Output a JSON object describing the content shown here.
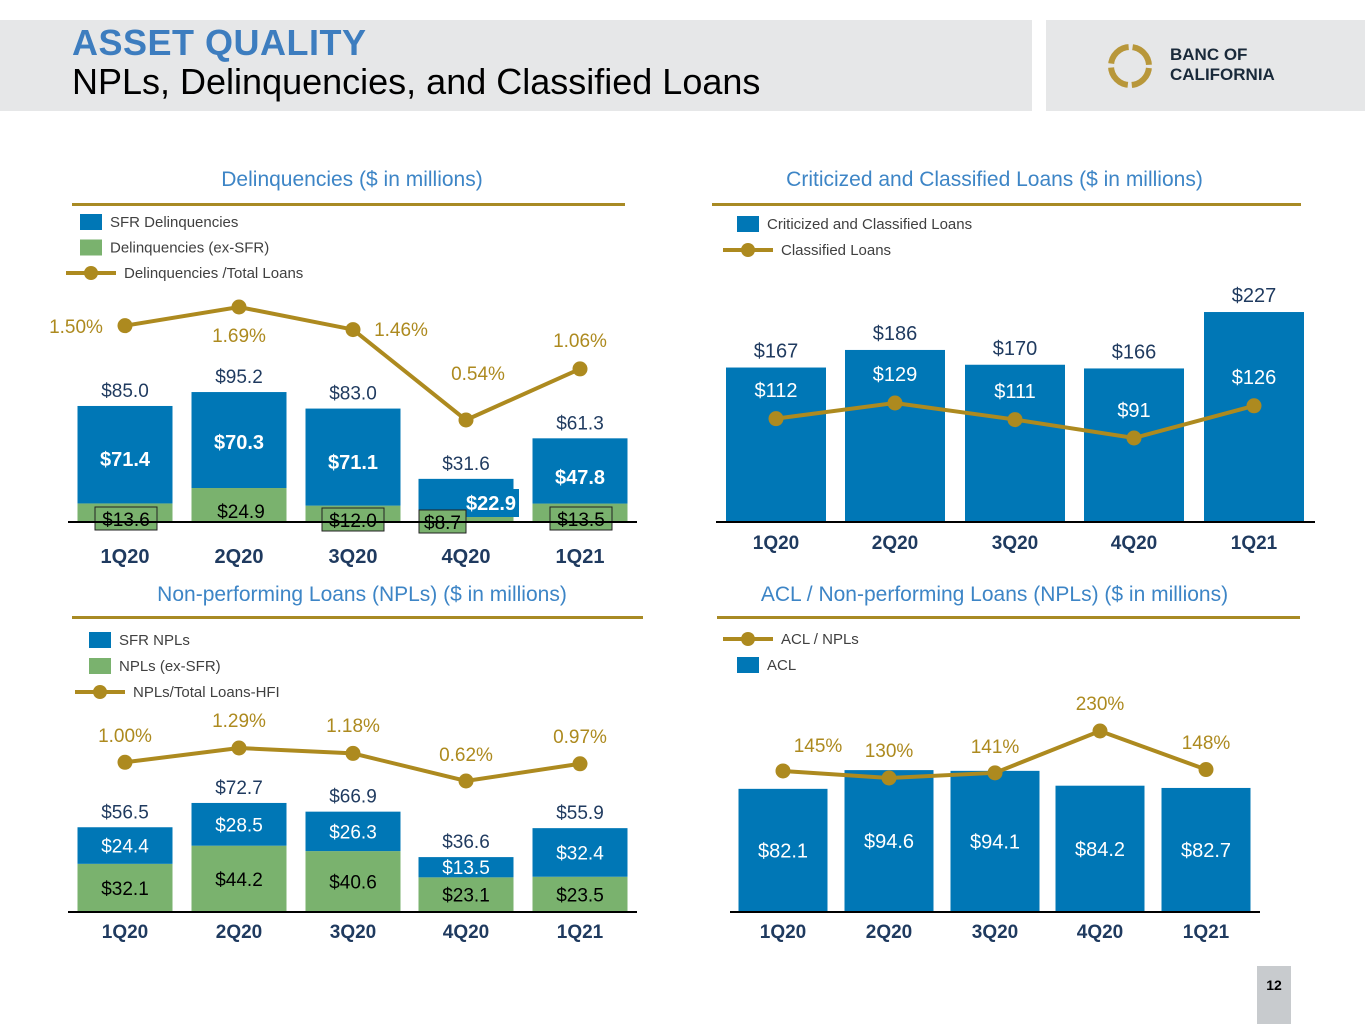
{
  "header": {
    "sup_title": "ASSET QUALITY",
    "title": "NPLs, Delinquencies, and Classified Loans",
    "logo_line1": "BANC OF",
    "logo_line2": "CALIFORNIA"
  },
  "page_number": "12",
  "colors": {
    "blue": "#0077b6",
    "green": "#7ab26e",
    "gold": "#ad8a1f",
    "title_blue": "#3d85c6",
    "header_blue": "#3d7dbf"
  },
  "chart_data": [
    {
      "id": "delinquencies",
      "type": "bar",
      "stacked": true,
      "title": "Delinquencies ($ in millions)",
      "categories": [
        "1Q20",
        "2Q20",
        "3Q20",
        "4Q20",
        "1Q21"
      ],
      "series": [
        {
          "name": "SFR Delinquencies",
          "values": [
            71.4,
            70.3,
            71.1,
            22.9,
            47.8
          ],
          "labels": [
            "$71.4",
            "$70.3",
            "$71.1",
            "$22.9",
            "$47.8"
          ]
        },
        {
          "name": "Delinquencies (ex-SFR)",
          "values": [
            13.6,
            24.9,
            12.0,
            8.7,
            13.5
          ],
          "labels": [
            "$13.6",
            "$24.9",
            "$12.0",
            "$8.7",
            "$13.5"
          ]
        }
      ],
      "totals": [
        "$85.0",
        "$95.2",
        "$83.0",
        "$31.6",
        "$61.3"
      ],
      "line": {
        "name": "Delinquencies /Total Loans",
        "values": [
          1.5,
          1.69,
          1.46,
          0.54,
          1.06
        ],
        "labels": [
          "1.50%",
          "1.69%",
          "1.46%",
          "0.54%",
          "1.06%"
        ]
      },
      "legend": [
        "SFR Delinquencies",
        "Delinquencies (ex-SFR)",
        "Delinquencies /Total Loans"
      ]
    },
    {
      "id": "criticized",
      "type": "bar",
      "title": "Criticized and Classified Loans ($ in millions)",
      "categories": [
        "1Q20",
        "2Q20",
        "3Q20",
        "4Q20",
        "1Q21"
      ],
      "series": [
        {
          "name": "Criticized and Classified Loans",
          "values": [
            167,
            186,
            170,
            166,
            227
          ],
          "labels": [
            "$167",
            "$186",
            "$170",
            "$166",
            "$227"
          ]
        }
      ],
      "line": {
        "name": "Classified Loans",
        "values": [
          112,
          129,
          111,
          91,
          126
        ],
        "labels": [
          "$112",
          "$129",
          "$111",
          "$91",
          "$126"
        ]
      },
      "legend": [
        "Criticized and Classified Loans",
        "Classified Loans"
      ]
    },
    {
      "id": "npls",
      "type": "bar",
      "stacked": true,
      "title": "Non-performing Loans (NPLs) ($ in millions)",
      "categories": [
        "1Q20",
        "2Q20",
        "3Q20",
        "4Q20",
        "1Q21"
      ],
      "series": [
        {
          "name": "NPLs (ex-SFR)",
          "values": [
            32.1,
            44.2,
            40.6,
            23.1,
            23.5
          ],
          "labels": [
            "$32.1",
            "$44.2",
            "$40.6",
            "$23.1",
            "$23.5"
          ]
        },
        {
          "name": "SFR NPLs",
          "values": [
            24.4,
            28.5,
            26.3,
            13.5,
            32.4
          ],
          "labels": [
            "$24.4",
            "$28.5",
            "$26.3",
            "$13.5",
            "$32.4"
          ]
        }
      ],
      "totals": [
        "$56.5",
        "$72.7",
        "$66.9",
        "$36.6",
        "$55.9"
      ],
      "line": {
        "name": "NPLs/Total Loans-HFI",
        "values": [
          1.0,
          1.29,
          1.18,
          0.62,
          0.97
        ],
        "labels": [
          "1.00%",
          "1.29%",
          "1.18%",
          "0.62%",
          "0.97%"
        ]
      },
      "legend": [
        "SFR NPLs",
        "NPLs (ex-SFR)",
        "NPLs/Total Loans-HFI"
      ]
    },
    {
      "id": "acl",
      "type": "bar",
      "title": "ACL / Non-performing Loans (NPLs) ($ in millions)",
      "categories": [
        "1Q20",
        "2Q20",
        "3Q20",
        "4Q20",
        "1Q21"
      ],
      "series": [
        {
          "name": "ACL",
          "values": [
            82.1,
            94.6,
            94.1,
            84.2,
            82.7
          ],
          "labels": [
            "$82.1",
            "$94.6",
            "$94.1",
            "$84.2",
            "$82.7"
          ]
        }
      ],
      "line": {
        "name": "ACL / NPLs",
        "values": [
          145,
          130,
          141,
          230,
          148
        ],
        "labels": [
          "145%",
          "130%",
          "141%",
          "230%",
          "148%"
        ]
      },
      "legend": [
        "ACL / NPLs",
        "ACL"
      ]
    }
  ]
}
